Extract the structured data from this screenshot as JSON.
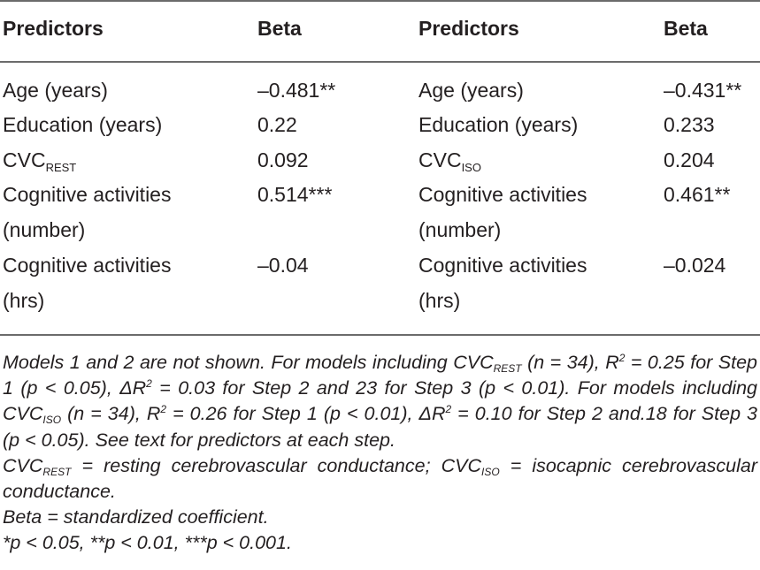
{
  "headers": {
    "left_predictors": "Predictors",
    "left_beta": "Beta",
    "right_predictors": "Predictors",
    "right_beta": "Beta"
  },
  "left_rows": [
    {
      "line1": "Age (years)",
      "line2": "",
      "beta": "–0.481**"
    },
    {
      "line1": "Education (years)",
      "line2": "",
      "beta": "0.22"
    },
    {
      "line1": "CVC",
      "sub": "REST",
      "line2": "",
      "beta": "0.092"
    },
    {
      "line1": "Cognitive activities",
      "line2": "(number)",
      "beta": "0.514***"
    },
    {
      "line1": "Cognitive activities",
      "line2": "(hrs)",
      "beta": "–0.04"
    }
  ],
  "right_rows": [
    {
      "line1": "Age (years)",
      "line2": "",
      "beta": "–0.431**"
    },
    {
      "line1": "Education (years)",
      "line2": "",
      "beta": "0.233"
    },
    {
      "line1": "CVC",
      "sub": "ISO",
      "line2": "",
      "beta": "0.204"
    },
    {
      "line1": "Cognitive activities",
      "line2": "(number)",
      "beta": "0.461**"
    },
    {
      "line1": "Cognitive activities",
      "line2": "(hrs)",
      "beta": "–0.024"
    }
  ],
  "notes": {
    "n1_a": "Models 1 and 2 are not shown. For models including CVC",
    "n1_sub1": "REST",
    "n1_b": " (n = 34), R",
    "n1_sup1": "2",
    "n1_c": " = 0.25 for Step 1 (p < 0.05), ΔR",
    "n1_sup2": "2",
    "n1_d": " = 0.03 for Step 2 and 23 for Step 3 (p < 0.01). For models including CVC",
    "n1_sub2": "ISO",
    "n1_e": " (n = 34), R",
    "n1_sup3": "2",
    "n1_f": " = 0.26 for Step 1 (p < 0.01), ΔR",
    "n1_sup4": "2",
    "n1_g": " = 0.10 for Step 2 and.18 for Step 3 (p < 0.05). See text for predictors at each step.",
    "n2_a": "CVC",
    "n2_sub1": "REST",
    "n2_b": " = resting cerebrovascular conductance; CVC",
    "n2_sub2": "ISO",
    "n2_c": " = isocapnic cerebrovascular conductance.",
    "n3": "Beta = standardized coefficient.",
    "n4": "*p < 0.05, **p < 0.01, ***p < 0.001."
  }
}
